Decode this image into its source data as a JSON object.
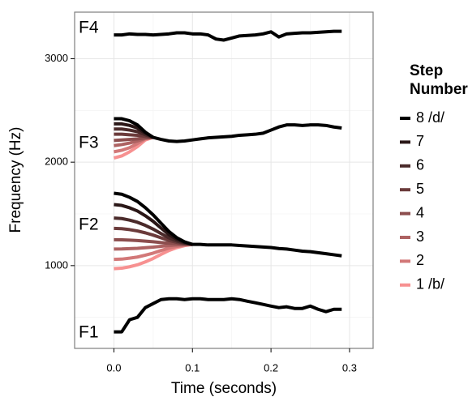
{
  "chart_data": {
    "type": "line",
    "xlabel": "Time (seconds)",
    "ylabel": "Frequency (Hz)",
    "xlim": [
      -0.05,
      0.33
    ],
    "ylim": [
      200,
      3450
    ],
    "xticks": [
      {
        "value": 0,
        "label": "0.0"
      },
      0.1,
      0.2,
      0.3
    ],
    "yticks": [
      1000,
      2000,
      3000
    ],
    "x_minor_grid": [
      -0.05,
      0.05,
      0.15,
      0.25
    ],
    "y_minor_grid": [
      500,
      1500,
      2500
    ],
    "grid": true,
    "legend_title": "Step Number",
    "legend_position": "right",
    "x": [
      0,
      0.01,
      0.02,
      0.03,
      0.04,
      0.05,
      0.06,
      0.07,
      0.08,
      0.09,
      0.1,
      0.11,
      0.12,
      0.13,
      0.14,
      0.15,
      0.16,
      0.17,
      0.18,
      0.19,
      0.2,
      0.21,
      0.22,
      0.23,
      0.24,
      0.25,
      0.26,
      0.27,
      0.28,
      0.29
    ],
    "formants": [
      {
        "label": "F1",
        "color": "#000000",
        "values": [
          360,
          360,
          477,
          500,
          594,
          633,
          672,
          680,
          680,
          672,
          680,
          680,
          672,
          672,
          672,
          680,
          672,
          656,
          641,
          625,
          609,
          594,
          602,
          586,
          586,
          609,
          578,
          555,
          578,
          578
        ]
      },
      {
        "label": "F2"
      },
      {
        "label": "F3"
      },
      {
        "label": "F4",
        "color": "#000000",
        "values": [
          3230,
          3230,
          3240,
          3235,
          3235,
          3230,
          3235,
          3240,
          3250,
          3250,
          3240,
          3240,
          3230,
          3190,
          3180,
          3200,
          3220,
          3225,
          3230,
          3240,
          3260,
          3210,
          3240,
          3245,
          3250,
          3250,
          3255,
          3260,
          3265,
          3265
        ]
      }
    ],
    "series": [
      {
        "name": "8 /d/",
        "color": "#000000",
        "values": [
          1700,
          1690,
          1660,
          1620,
          1560,
          1490,
          1410,
          1330,
          1270,
          1230,
          1205,
          1205,
          1200,
          1200,
          1200,
          1200,
          1195,
          1190,
          1185,
          1180,
          1175,
          1165,
          1160,
          1150,
          1140,
          1135,
          1125,
          1115,
          1105,
          1095
        ],
        "values_f3": [
          2420,
          2420,
          2400,
          2360,
          2290,
          2240,
          2220,
          2205,
          2200,
          2205,
          2215,
          2225,
          2235,
          2240,
          2245,
          2250,
          2260,
          2265,
          2270,
          2280,
          2310,
          2340,
          2360,
          2360,
          2355,
          2360,
          2360,
          2355,
          2340,
          2330
        ]
      },
      {
        "name": "7",
        "color": "#2a1717",
        "values": [
          1590,
          1582,
          1559,
          1528,
          1482,
          1428,
          1363,
          1301,
          1255,
          1224,
          1205,
          null,
          null,
          null,
          null,
          null,
          null,
          null,
          null,
          null,
          null,
          null,
          null,
          null,
          null,
          null,
          null,
          null,
          null,
          null
        ],
        "values_f3": [
          2370,
          2370,
          2355,
          2330,
          2280,
          2240,
          null,
          null,
          null,
          null,
          null,
          null,
          null,
          null,
          null,
          null,
          null,
          null,
          null,
          null,
          null,
          null,
          null,
          null,
          null,
          null,
          null,
          null,
          null,
          null
        ]
      },
      {
        "name": "6",
        "color": "#4a2a2a",
        "values": [
          1460,
          1455,
          1440,
          1419,
          1389,
          1353,
          1310,
          1269,
          1238,
          1218,
          1205,
          null,
          null,
          null,
          null,
          null,
          null,
          null,
          null,
          null,
          null,
          null,
          null,
          null,
          null,
          null,
          null,
          null,
          null,
          null
        ],
        "values_f3": [
          2320,
          2320,
          2310,
          2295,
          2265,
          2240,
          null,
          null,
          null,
          null,
          null,
          null,
          null,
          null,
          null,
          null,
          null,
          null,
          null,
          null,
          null,
          null,
          null,
          null,
          null,
          null,
          null,
          null,
          null,
          null
        ]
      },
      {
        "name": "5",
        "color": "#6b3b3b",
        "values": [
          1360,
          1357,
          1348,
          1335,
          1317,
          1295,
          1269,
          1244,
          1225,
          1213,
          1205,
          null,
          null,
          null,
          null,
          null,
          null,
          null,
          null,
          null,
          null,
          null,
          null,
          null,
          null,
          null,
          null,
          null,
          null,
          null
        ],
        "values_f3": [
          2270,
          2270,
          2265,
          2260,
          2250,
          2240,
          null,
          null,
          null,
          null,
          null,
          null,
          null,
          null,
          null,
          null,
          null,
          null,
          null,
          null,
          null,
          null,
          null,
          null,
          null,
          null,
          null,
          null,
          null,
          null
        ]
      },
      {
        "name": "4",
        "color": "#8c4e4e",
        "values": [
          1250,
          1249,
          1246,
          1243,
          1237,
          1231,
          1223,
          1216,
          1211,
          1207,
          1205,
          null,
          null,
          null,
          null,
          null,
          null,
          null,
          null,
          null,
          null,
          null,
          null,
          null,
          null,
          null,
          null,
          null,
          null,
          null
        ],
        "values_f3": [
          2210,
          2215,
          2220,
          2225,
          2235,
          2240,
          null,
          null,
          null,
          null,
          null,
          null,
          null,
          null,
          null,
          null,
          null,
          null,
          null,
          null,
          null,
          null,
          null,
          null,
          null,
          null,
          null,
          null,
          null,
          null
        ]
      },
      {
        "name": "3",
        "color": "#ad6262",
        "values": [
          1160,
          1161,
          1164,
          1167,
          1173,
          1179,
          1187,
          1194,
          1199,
          1203,
          1205,
          null,
          null,
          null,
          null,
          null,
          null,
          null,
          null,
          null,
          null,
          null,
          null,
          null,
          null,
          null,
          null,
          null,
          null,
          null
        ],
        "values_f3": [
          2160,
          2170,
          2185,
          2205,
          2230,
          2240,
          null,
          null,
          null,
          null,
          null,
          null,
          null,
          null,
          null,
          null,
          null,
          null,
          null,
          null,
          null,
          null,
          null,
          null,
          null,
          null,
          null,
          null,
          null,
          null
        ]
      },
      {
        "name": "2",
        "color": "#d27878",
        "values": [
          1060,
          1063,
          1072,
          1083,
          1101,
          1121,
          1146,
          1169,
          1186,
          1198,
          1205,
          null,
          null,
          null,
          null,
          null,
          null,
          null,
          null,
          null,
          null,
          null,
          null,
          null,
          null,
          null,
          null,
          null,
          null,
          null
        ],
        "values_f3": [
          2100,
          2115,
          2140,
          2180,
          2225,
          2240,
          null,
          null,
          null,
          null,
          null,
          null,
          null,
          null,
          null,
          null,
          null,
          null,
          null,
          null,
          null,
          null,
          null,
          null,
          null,
          null,
          null,
          null,
          null,
          null
        ]
      },
      {
        "name": "1 /b/",
        "color": "#f79191",
        "values": [
          970,
          975,
          989,
          1008,
          1036,
          1069,
          1109,
          1146,
          1174,
          1193,
          1205,
          null,
          null,
          null,
          null,
          null,
          null,
          null,
          null,
          null,
          null,
          null,
          null,
          null,
          null,
          null,
          null,
          null,
          null,
          null
        ],
        "values_f3": [
          2040,
          2060,
          2100,
          2150,
          2215,
          2240,
          null,
          null,
          null,
          null,
          null,
          null,
          null,
          null,
          null,
          null,
          null,
          null,
          null,
          null,
          null,
          null,
          null,
          null,
          null,
          null,
          null,
          null,
          null,
          null
        ]
      }
    ]
  }
}
